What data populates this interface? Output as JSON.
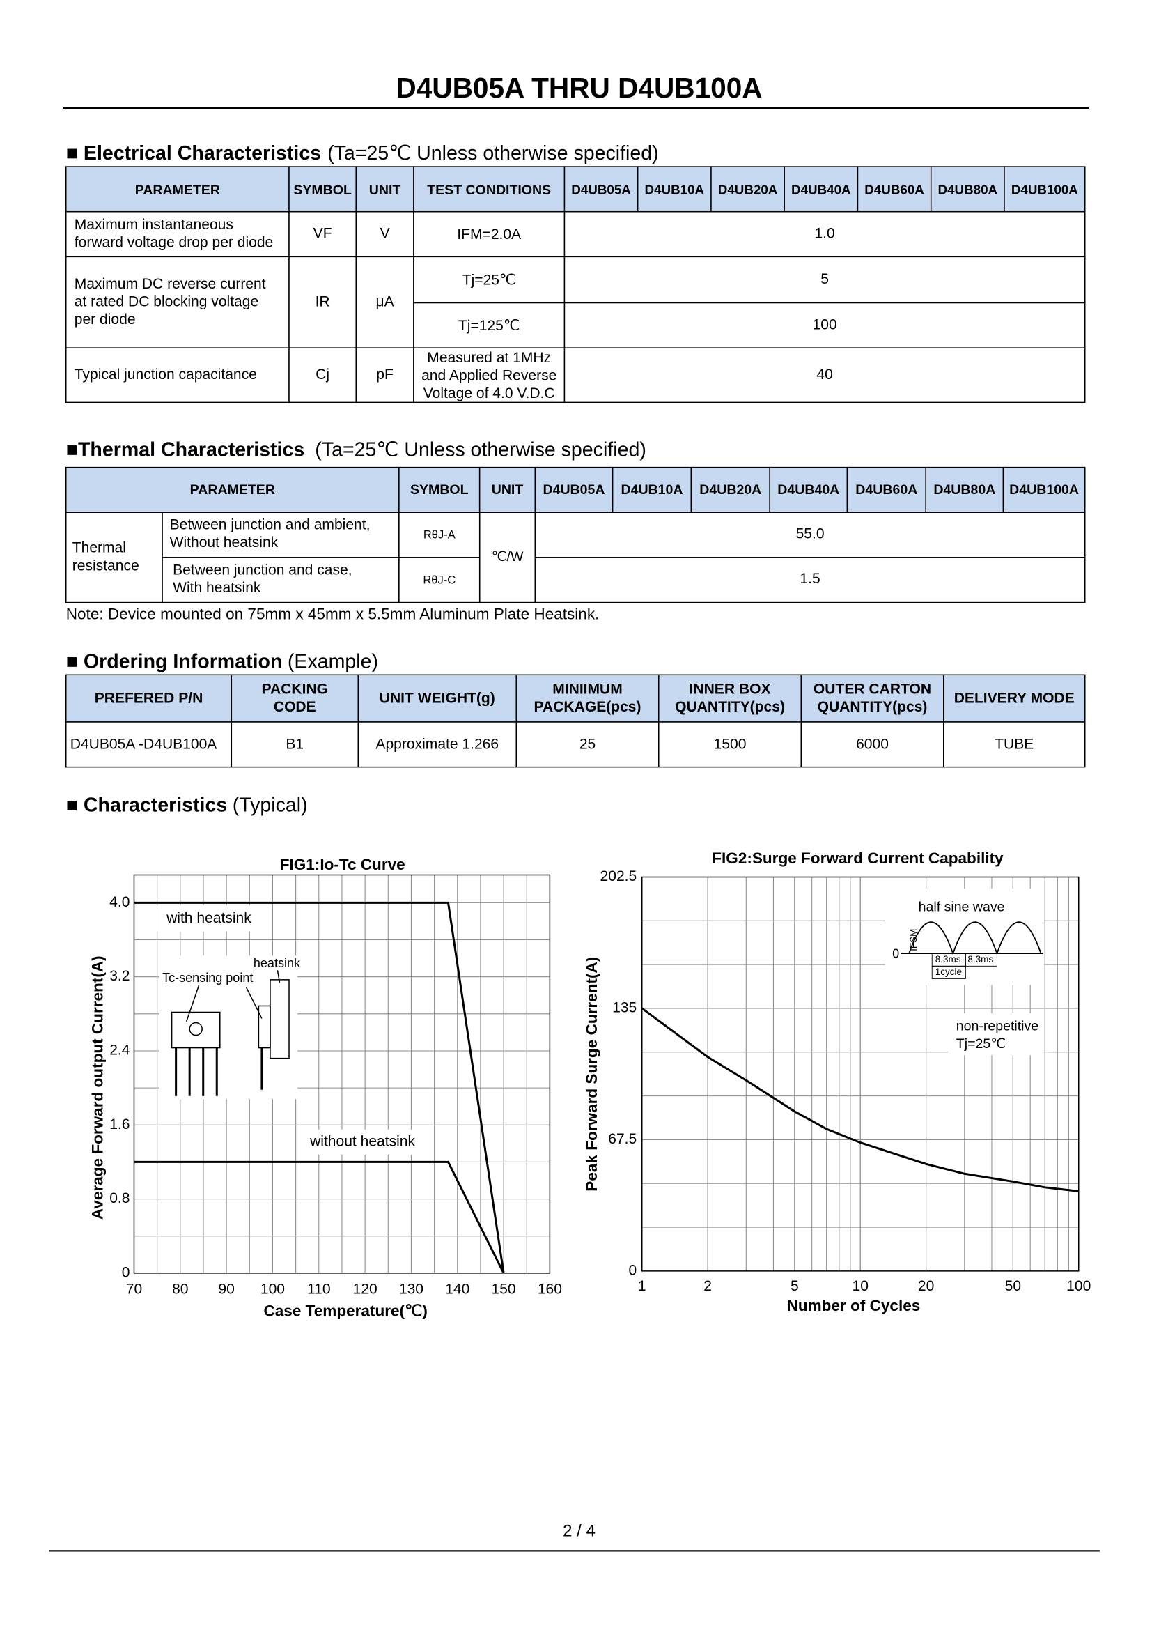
{
  "header": {
    "title": "D4UB05A THRU D4UB100A"
  },
  "electrical": {
    "heading": "■ Electrical Characteristics",
    "condition": "(Ta=25℃ Unless otherwise specified)",
    "columns": [
      "PARAMETER",
      "SYMBOL",
      "UNIT",
      "TEST CONDITIONS",
      "D4UB05A",
      "D4UB10A",
      "D4UB20A",
      "D4UB40A",
      "D4UB60A",
      "D4UB80A",
      "D4UB100A"
    ],
    "rows": [
      {
        "parameter": [
          "Maximum instantaneous",
          "forward voltage drop per diode"
        ],
        "symbol": "VF",
        "unit": "V",
        "conditions": [
          {
            "test": [
              "IFM=2.0A"
            ],
            "value": "1.0"
          }
        ]
      },
      {
        "parameter": [
          "Maximum DC reverse current",
          "at rated DC blocking voltage",
          "per diode"
        ],
        "symbol": "IR",
        "unit": "μA",
        "conditions": [
          {
            "test": [
              "Tj=25℃"
            ],
            "value": "5"
          },
          {
            "test": [
              "Tj=125℃"
            ],
            "value": "100"
          }
        ]
      },
      {
        "parameter": [
          "Typical junction capacitance"
        ],
        "symbol": "Cj",
        "unit": "pF",
        "conditions": [
          {
            "test": [
              "Measured at 1MHz",
              "and Applied Reverse",
              "Voltage of 4.0 V.D.C"
            ],
            "value": "40"
          }
        ]
      }
    ]
  },
  "thermal": {
    "heading": "■Thermal Characteristics",
    "condition": "(Ta=25℃ Unless otherwise specified)",
    "columns": [
      "PARAMETER",
      "SYMBOL",
      "UNIT",
      "D4UB05A",
      "D4UB10A",
      "D4UB20A",
      "D4UB40A",
      "D4UB60A",
      "D4UB80A",
      "D4UB100A"
    ],
    "group": [
      "Thermal",
      "resistance"
    ],
    "unit": "℃/W",
    "rows": [
      {
        "condition": [
          "Between junction and ambient,",
          "Without heatsink"
        ],
        "symbol": "RθJ-A",
        "value": "55.0"
      },
      {
        "condition": [
          "Between junction and case,",
          "With heatsink"
        ],
        "symbol": "RθJ-C",
        "value": "1.5"
      }
    ],
    "note": "Note: Device mounted on 75mm x 45mm x 5.5mm Aluminum Plate Heatsink."
  },
  "ordering": {
    "heading": "■ Ordering Information",
    "example": "(Example)",
    "columns": [
      [
        "PREFERED P/N"
      ],
      [
        "PACKING",
        "CODE"
      ],
      [
        "UNIT WEIGHT(g)"
      ],
      [
        "MINIIMUM",
        "PACKAGE(pcs)"
      ],
      [
        "INNER BOX",
        "QUANTITY(pcs)"
      ],
      [
        "OUTER CARTON",
        "QUANTITY(pcs)"
      ],
      [
        "DELIVERY MODE"
      ]
    ],
    "rows": [
      [
        "D4UB05A -D4UB100A",
        "B1",
        "Approximate 1.266",
        "25",
        "1500",
        "6000",
        "TUBE"
      ]
    ]
  },
  "characteristics": {
    "heading": "■ Characteristics",
    "note": "(Typical)"
  },
  "chart_data": [
    {
      "type": "line",
      "title": "FIG1:Io-Tc Curve",
      "x_label": "Case Temperature(℃)",
      "y_label": "Average Forward output Current(A)",
      "x": [
        70,
        138,
        150
      ],
      "series": [
        {
          "name": "with heatsink",
          "color": "#000000",
          "values": [
            4.0,
            4.0,
            0
          ]
        },
        {
          "name": "without heatsink",
          "color": "#000000",
          "values": [
            1.2,
            1.2,
            0
          ]
        }
      ],
      "xlim": [
        70,
        160
      ],
      "xticks": [
        70,
        80,
        90,
        100,
        110,
        120,
        130,
        140,
        150,
        160
      ],
      "ylim": [
        0,
        4.3
      ],
      "yticks": [
        0,
        0.8,
        1.6,
        2.4,
        3.2,
        {
          "value": 4,
          "label": "4.0"
        }
      ],
      "grid": true,
      "log_x": false,
      "annotations": [
        "heatsink",
        "Tc-sensing point"
      ]
    },
    {
      "type": "line",
      "title": "FIG2:Surge Forward Current Capability",
      "x_label": "Number of Cycles",
      "y_label": "Peak Forward Surge Current(A)",
      "x": [
        1,
        2,
        3,
        5,
        7,
        10,
        20,
        30,
        50,
        70,
        100
      ],
      "series": [
        {
          "color": "#000000",
          "values": [
            135,
            110,
            98,
            82,
            73,
            66,
            55,
            50,
            46,
            43,
            41
          ]
        }
      ],
      "xlim": [
        1,
        100
      ],
      "xticks": [
        1,
        2,
        5,
        10,
        20,
        50,
        100
      ],
      "ylim": [
        0,
        202.5
      ],
      "yticks": [
        0,
        67.5,
        135,
        202.5
      ],
      "grid": true,
      "log_x": true,
      "annotations": [
        "half sine wave",
        "0",
        "IFSM",
        "8.3ms",
        "8.3ms",
        "1cycle",
        "non-repetitive",
        "Tj=25℃"
      ]
    }
  ],
  "footer": {
    "page": "2 / 4"
  }
}
